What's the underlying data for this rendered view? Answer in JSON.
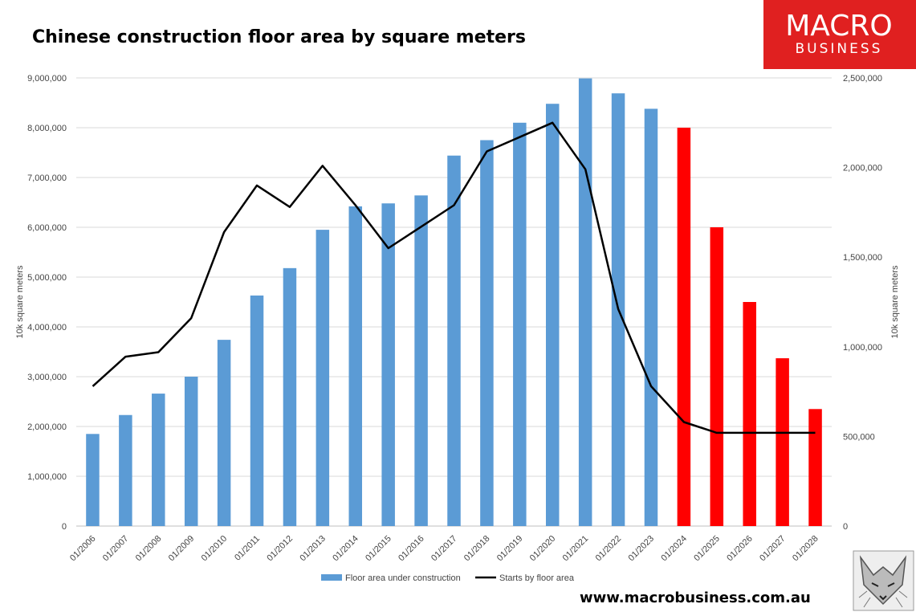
{
  "chart_data": {
    "type": "bar",
    "title": "Chinese construction floor area by square meters",
    "categories": [
      "01/2006",
      "01/2007",
      "01/2008",
      "01/2009",
      "01/2010",
      "01/2011",
      "01/2012",
      "01/2013",
      "01/2014",
      "01/2015",
      "01/2016",
      "01/2017",
      "01/2018",
      "01/2019",
      "01/2020",
      "01/2021",
      "01/2022",
      "01/2023",
      "01/2024",
      "01/2025",
      "01/2026",
      "01/2027",
      "01/2028"
    ],
    "series": [
      {
        "name": "Floor area under construction",
        "type": "bar",
        "axis": "left",
        "color": "#5b9bd5",
        "forecast_color": "#ff0000",
        "forecast_from_index": 18,
        "values": [
          1850000,
          2230000,
          2660000,
          3000000,
          3740000,
          4630000,
          5180000,
          5950000,
          6420000,
          6480000,
          6640000,
          7440000,
          7750000,
          8100000,
          8480000,
          8990000,
          8690000,
          8380000,
          8000000,
          6000000,
          4500000,
          3370000,
          2350000
        ]
      },
      {
        "name": "Starts by floor area",
        "type": "line",
        "axis": "right",
        "color": "#000000",
        "values": [
          780000,
          945000,
          970000,
          1160000,
          1640000,
          1900000,
          1780000,
          2010000,
          1790000,
          1550000,
          1670000,
          1790000,
          2090000,
          2170000,
          2250000,
          1990000,
          1210000,
          780000,
          580000,
          520000,
          520000,
          520000,
          520000
        ]
      }
    ],
    "left_axis": {
      "label": "10k square meters",
      "ylim": [
        0,
        9000000
      ],
      "ticks": [
        0,
        1000000,
        2000000,
        3000000,
        4000000,
        5000000,
        6000000,
        7000000,
        8000000,
        9000000
      ],
      "tick_labels": [
        "0",
        "1,000,000",
        "2,000,000",
        "3,000,000",
        "4,000,000",
        "5,000,000",
        "6,000,000",
        "7,000,000",
        "8,000,000",
        "9,000,000"
      ]
    },
    "right_axis": {
      "label": "10k square meters",
      "ylim": [
        0,
        2500000
      ],
      "ticks": [
        0,
        500000,
        1000000,
        1500000,
        2000000,
        2500000
      ],
      "tick_labels": [
        "0",
        "500,000",
        "1,000,000",
        "1,500,000",
        "2,000,000",
        "2,500,000"
      ]
    },
    "grid": true,
    "legend_position": "bottom"
  },
  "branding": {
    "logo_line1": "MACRO",
    "logo_line2": "BUSINESS",
    "logo_color": "#e02020",
    "website": "www.macrobusiness.com.au",
    "mascot": "wolf-icon"
  }
}
